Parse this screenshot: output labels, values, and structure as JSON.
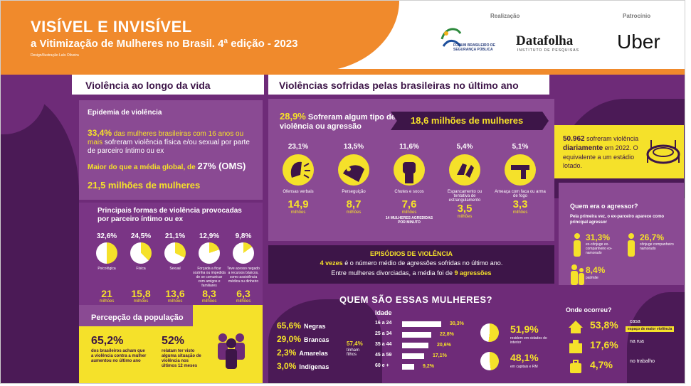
{
  "header": {
    "title": "VISÍVEL E INVISÍVEL",
    "subtitle": "a Vitimização de Mulheres no Brasil. 4ª edição - 2023",
    "credit": "Design/Ilustração Laís Oliveira",
    "realizacao_label": "Realização",
    "patrocinio_label": "Patrocínio",
    "fbsp_logo_text": "FÓRUM BRASILEIRO DE SEGURANÇA PÚBLICA",
    "datafolha_logo": "Datafolha",
    "datafolha_sub": "INSTITUTO DE PESQUISAS",
    "uber_logo": "Uber"
  },
  "left_section": {
    "heading": "Violência ao longo da vida",
    "epidemic_title": "Epidemia de violência",
    "stat_pct": "33,4%",
    "stat_text_1": " das mulheres brasileiras com 16 anos",
    "stat_text_2": "ou mais",
    "stat_text_3": " sofreram violência física e/ou sexual por parte de parceiro íntimo ou ex",
    "global_text": "Maior do que a média global, de ",
    "global_pct": "27% (OMS)",
    "millions": "21,5 milhões de mulheres",
    "forms_title": "Principais formas de violência provocadas por parceiro íntimo ou ex",
    "forms": [
      {
        "pct": "32,6%",
        "label": "Psicológica",
        "num": "21",
        "unit": "milhões",
        "fraction": 0.326
      },
      {
        "pct": "24,5%",
        "label": "Física",
        "num": "15,8",
        "unit": "milhões",
        "fraction": 0.245
      },
      {
        "pct": "21,1%",
        "label": "Sexual",
        "num": "13,6",
        "unit": "milhões",
        "fraction": 0.211
      },
      {
        "pct": "12,9%",
        "label": "Forçada a ficar sozinha ou impedida de se comunicar com amigos e familiares",
        "num": "8,3",
        "unit": "milhões",
        "fraction": 0.129
      },
      {
        "pct": "9,8%",
        "label": "Teve acesso negado a recursos básicos, como assistência médica ou dinheiro",
        "num": "6,3",
        "unit": "milhões",
        "fraction": 0.098
      }
    ],
    "perception_title": "Percepção da população",
    "perception": [
      {
        "pct": "65,2%",
        "text": "dos brasileiros acham que a violência contra a mulher aumentou no último ano"
      },
      {
        "pct": "52%",
        "text": "relatam ter visto alguma situação de violência nos últimos 12 meses"
      }
    ]
  },
  "right_section": {
    "heading": "Violências sofridas pelas brasileiras no último ano",
    "suffered_pct": "28,9%",
    "suffered_text": " Sofreram algum tipo de violência ou agressão",
    "suffered_millions": "18,6 milhões de mulheres",
    "stadium_num": "50.962",
    "stadium_text_1": " sofreram violência ",
    "stadium_bold": "diariamente",
    "stadium_text_2": " em 2022. O equivalente a um estádio lotado.",
    "types": [
      {
        "pct": "23,1%",
        "label": "Ofensas verbais",
        "num": "14,9",
        "unit": "milhões",
        "icon": "speech-icon"
      },
      {
        "pct": "13,5%",
        "label": "Perseguição",
        "num": "8,7",
        "unit": "milhões",
        "icon": "eye-icon"
      },
      {
        "pct": "11,6%",
        "label": "Chutes e socos",
        "num": "7,6",
        "unit": "milhões",
        "extra": "14 MULHERES AGREDIDAS POR MINUTO",
        "icon": "fist-icon"
      },
      {
        "pct": "5,4%",
        "label": "Espancamento ou tentativa de estrangulamento",
        "num": "3,5",
        "unit": "milhões",
        "icon": "hand-icon"
      },
      {
        "pct": "5,1%",
        "label": "Ameaça com faca ou arma de fogo",
        "num": "3,3",
        "unit": "milhões",
        "icon": "gun-icon"
      }
    ],
    "episodes_title": "EPISÓDIOS DE VIOLÊNCIA",
    "episodes_line1_bold": "4 vezes",
    "episodes_line1": " é o número médio de agressões sofridas no último ano.",
    "episodes_line2": "Entre mulheres divorciadas, a média foi de ",
    "episodes_line2_bold": "9 agressões",
    "who_title": "QUEM SÃO ESSAS MULHERES?",
    "race": [
      {
        "pct": "65,6%",
        "label": "Negras"
      },
      {
        "pct": "29,0%",
        "label": "Brancas"
      },
      {
        "pct": "2,3%",
        "label": "Amarelas"
      },
      {
        "pct": "3,0%",
        "label": "Indígenas"
      }
    ],
    "children_pct": "57,4%",
    "children_label": "tinham filhos",
    "age_title": "Idade",
    "ages": [
      {
        "range": "16 a 24",
        "pct": "30,3%",
        "value": 30.3
      },
      {
        "range": "25 a 34",
        "pct": "22,8%",
        "value": 22.8
      },
      {
        "range": "35 a 44",
        "pct": "20,6%",
        "value": 20.6
      },
      {
        "range": "45 a 59",
        "pct": "17,1%",
        "value": 17.1
      },
      {
        "range": "60 e +",
        "pct": "9,2%",
        "value": 9.2
      }
    ],
    "residence": [
      {
        "pct": "51,9%",
        "label": "residem em cidades do interior",
        "fraction": 0.519
      },
      {
        "pct": "48,1%",
        "label": "em capitais e RM",
        "fraction": 0.481
      }
    ],
    "aggressor_title": "Quem era o agressor?",
    "aggressor_note": "Pela primeira vez, o ex-parceiro aparece como principal agressor",
    "aggressors": [
      {
        "pct": "31,3%",
        "label": "ex-cônjuge ex-companheiro ex-namorado"
      },
      {
        "pct": "26,7%",
        "label": "cônjuge companheiro namorado"
      },
      {
        "pct": "8,4%",
        "label": "pai/mãe"
      }
    ],
    "where_title": "Onde ocorreu?",
    "where": [
      {
        "pct": "53,8%",
        "label": "casa",
        "note": "espaço de maior violência"
      },
      {
        "pct": "17,6%",
        "label": "na rua"
      },
      {
        "pct": "4,7%",
        "label": "no trabalho"
      }
    ]
  }
}
